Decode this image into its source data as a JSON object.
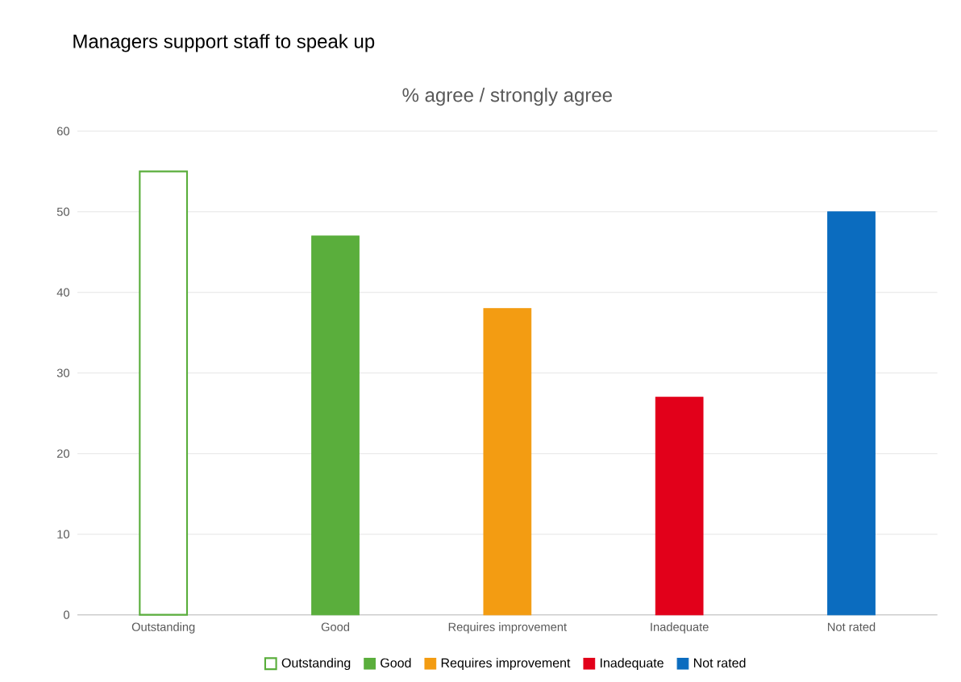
{
  "chart_data": {
    "type": "bar",
    "title": "Managers support staff to speak up",
    "subtitle": "% agree / strongly agree",
    "categories": [
      "Outstanding",
      "Good",
      "Requires improvement",
      "Inadequate",
      "Not rated"
    ],
    "series": [
      {
        "name": "Outstanding",
        "color": "#ffffff",
        "values": [
          55,
          null,
          null,
          null,
          null
        ]
      },
      {
        "name": "Good",
        "color": "#5aae3c",
        "values": [
          null,
          47,
          null,
          null,
          null
        ]
      },
      {
        "name": "Requires improvement",
        "color": "#f39c12",
        "values": [
          null,
          null,
          38,
          null,
          null
        ]
      },
      {
        "name": "Inadequate",
        "color": "#e2001a",
        "values": [
          null,
          null,
          null,
          27,
          null
        ]
      },
      {
        "name": "Not rated",
        "color": "#0b6cbf",
        "values": [
          null,
          null,
          null,
          null,
          50
        ]
      }
    ],
    "ylim": [
      0,
      60
    ],
    "yticks": [
      0,
      10,
      20,
      30,
      40,
      50,
      60
    ],
    "grid": "y",
    "legend": "bottom"
  }
}
